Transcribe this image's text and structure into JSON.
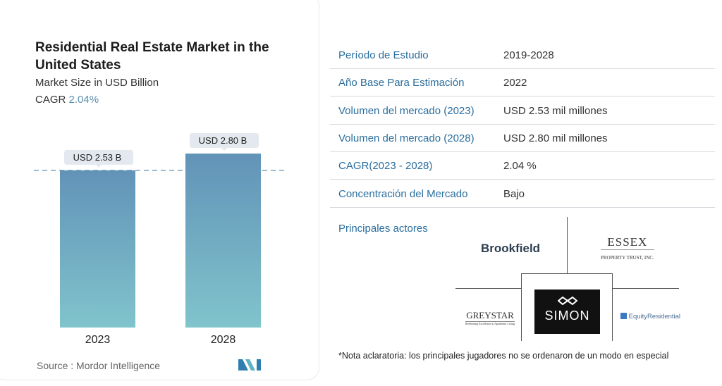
{
  "header": {
    "title": "Residential Real Estate Market in the United States",
    "subtitle": "Market Size in USD Billion",
    "cagr_label": "CAGR",
    "cagr_value": "2.04%"
  },
  "chart_data": {
    "type": "bar",
    "categories": [
      "2023",
      "2028"
    ],
    "values": [
      2.53,
      2.8
    ],
    "data_labels": [
      "USD 2.53 B",
      "USD 2.80 B"
    ],
    "title": "Residential Real Estate Market in the United States",
    "ylabel": "Market Size in USD Billion",
    "ylim": [
      0,
      2.8
    ],
    "colors": {
      "top": "#6293b8",
      "bottom": "#80c4cc"
    }
  },
  "source": "Source :  Mordor Intelligence",
  "table": [
    {
      "label": "Período de Estudio",
      "value": "2019-2028"
    },
    {
      "label": "Año Base Para Estimación",
      "value": "2022"
    },
    {
      "label": "Volumen del mercado (2023)",
      "value": "USD 2.53 mil millones"
    },
    {
      "label": "Volumen del mercado (2028)",
      "value": "USD 2.80 mil millones"
    },
    {
      "label": "CAGR(2023 - 2028)",
      "value": "2.04 %"
    },
    {
      "label": "Concentración del Mercado",
      "value": "Bajo"
    }
  ],
  "actors": {
    "title": "Principales actores",
    "logos": {
      "brookfield": "Brookfield",
      "essex": "ESSEX",
      "essex_sub": "PROPERTY TRUST, INC.",
      "greystar": "GREYSTAR",
      "greystar_sub": "Redefining Excellence in Apartment Living",
      "simon": "SIMON",
      "equity": "EquityResidential"
    }
  },
  "note": "*Nota aclaratoria: los principales jugadores no se ordenaron de un modo en especial"
}
